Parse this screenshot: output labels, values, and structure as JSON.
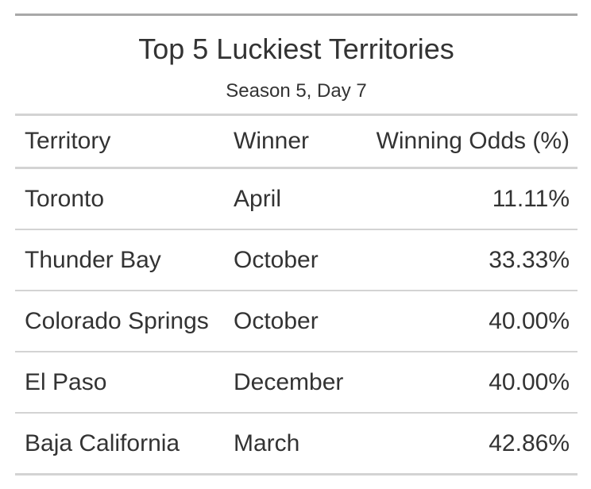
{
  "table": {
    "title": "Top 5 Luckiest Territories",
    "subtitle": "Season 5, Day 7",
    "columns": [
      "Territory",
      "Winner",
      "Winning Odds (%)"
    ],
    "rows": [
      {
        "territory": "Toronto",
        "winner": "April",
        "odds": "11.11%"
      },
      {
        "territory": "Thunder Bay",
        "winner": "October",
        "odds": "33.33%"
      },
      {
        "territory": "Colorado Springs",
        "winner": "October",
        "odds": "40.00%"
      },
      {
        "territory": "El Paso",
        "winner": "December",
        "odds": "40.00%"
      },
      {
        "territory": "Baja California",
        "winner": "March",
        "odds": "42.86%"
      }
    ]
  }
}
